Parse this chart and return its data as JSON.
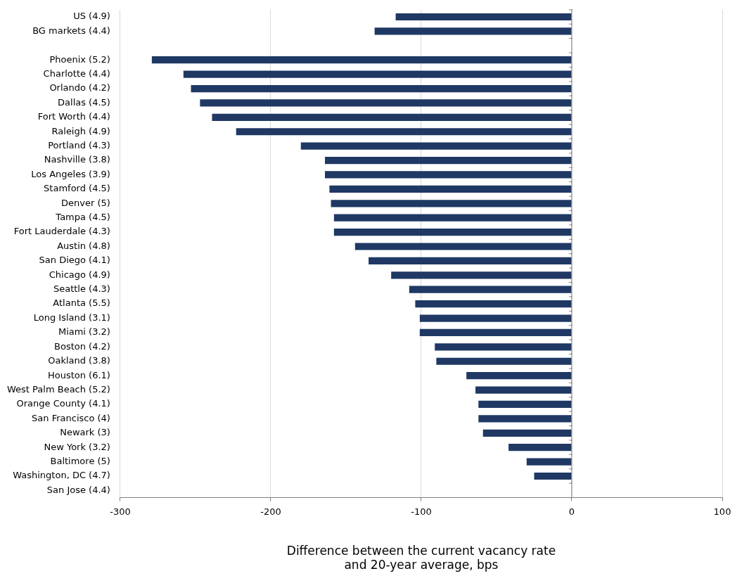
{
  "chart_data": {
    "type": "bar",
    "orientation": "horizontal",
    "xlabel": "Difference between the current vacancy rate\nand 20-year average, bps",
    "categories": [
      "US (4.9)",
      "BG markets (4.4)",
      null,
      "Phoenix (5.2)",
      "Charlotte (4.4)",
      "Orlando (4.2)",
      "Dallas (4.5)",
      "Fort Worth (4.4)",
      "Raleigh (4.9)",
      "Portland (4.3)",
      "Nashville (3.8)",
      "Los Angeles (3.9)",
      "Stamford (4.5)",
      "Denver (5)",
      "Tampa (4.5)",
      "Fort Lauderdale (4.3)",
      "Austin (4.8)",
      "San Diego (4.1)",
      "Chicago (4.9)",
      "Seattle (4.3)",
      "Atlanta (5.5)",
      "Long Island (3.1)",
      "Miami (3.2)",
      "Boston (4.2)",
      "Oakland (3.8)",
      "Houston (6.1)",
      "West Palm Beach (5.2)",
      "Orange County (4.1)",
      "San Francisco (4)",
      "Newark (3)",
      "New York (3.2)",
      "Baltimore (5)",
      "Washington, DC (4.7)",
      "San Jose (4.4)"
    ],
    "values": [
      -117,
      -131,
      null,
      -279,
      -258,
      -253,
      -247,
      -239,
      -223,
      -180,
      -164,
      -164,
      -161,
      -160,
      -158,
      -158,
      -144,
      -135,
      -120,
      -108,
      -104,
      -101,
      -101,
      -91,
      -90,
      -70,
      -64,
      -62,
      -62,
      -59,
      -42,
      -30,
      -25,
      0
    ],
    "color": "#1f3864",
    "xlim": [
      -300,
      100
    ],
    "xticks": [
      -300,
      -200,
      -100,
      0,
      100
    ],
    "grid": "x"
  }
}
